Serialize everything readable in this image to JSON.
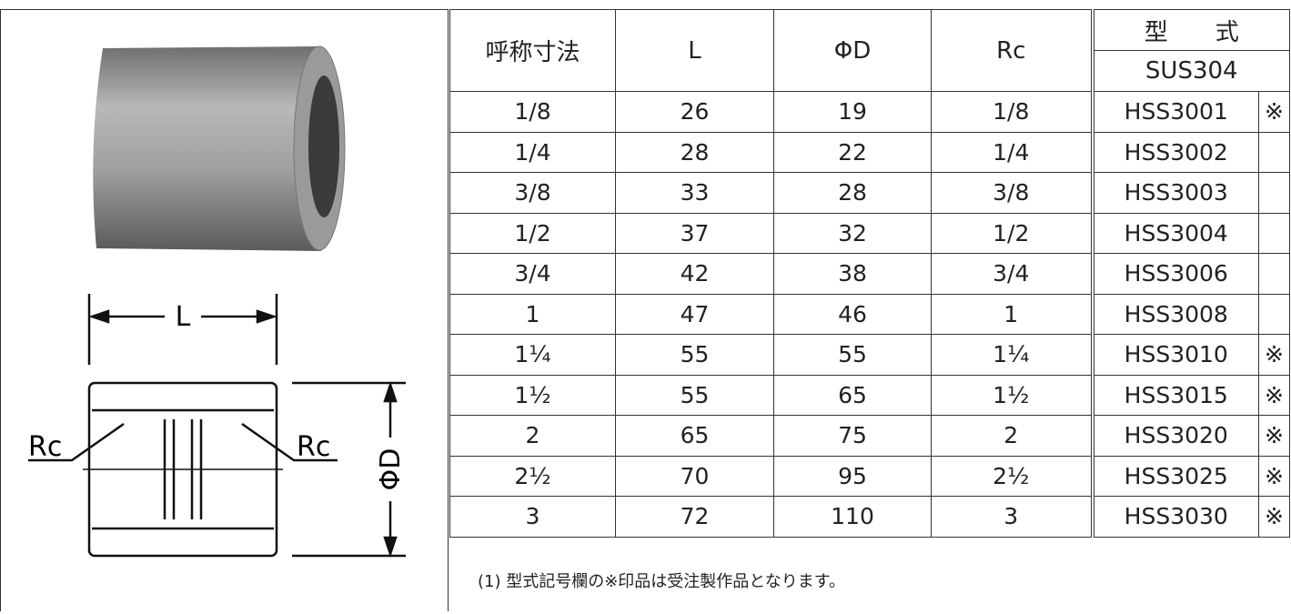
{
  "diagram": {
    "labels": {
      "length": "L",
      "thread_left": "Rc",
      "thread_right": "Rc",
      "diameter": "ΦD"
    }
  },
  "table": {
    "headers": [
      "呼称寸法",
      "L",
      "ΦD",
      "Rc"
    ],
    "model_header": "型　　式",
    "material": "SUS304",
    "rows": [
      [
        "1/8",
        26,
        19,
        "1/8",
        "HSS3001",
        "※"
      ],
      [
        "1/4",
        28,
        22,
        "1/4",
        "HSS3002",
        null
      ],
      [
        "3/8",
        33,
        28,
        "3/8",
        "HSS3003",
        null
      ],
      [
        "1/2",
        37,
        32,
        "1/2",
        "HSS3004",
        null
      ],
      [
        "3/4",
        42,
        38,
        "3/4",
        "HSS3006",
        null
      ],
      [
        "1",
        47,
        46,
        "1",
        "HSS3008",
        null
      ],
      [
        "1¼",
        55,
        55,
        "1¼",
        "HSS3010",
        "※"
      ],
      [
        "1½",
        55,
        65,
        "1½",
        "HSS3015",
        "※"
      ],
      [
        "2",
        65,
        75,
        "2",
        "HSS3020",
        "※"
      ],
      [
        "2½",
        70,
        95,
        "2½",
        "HSS3025",
        "※"
      ],
      [
        "3",
        72,
        110,
        "3",
        "HSS3030",
        "※"
      ]
    ]
  },
  "note": "(1) 型式記号欄の※印品は受注製作品となります。"
}
